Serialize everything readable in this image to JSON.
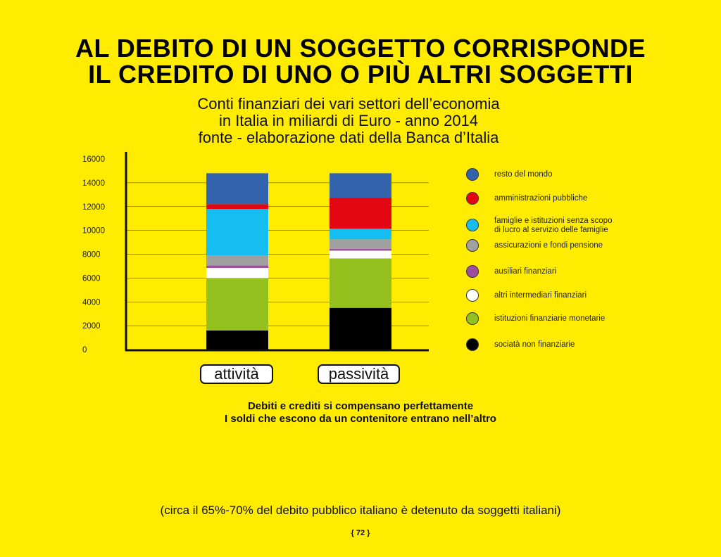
{
  "title_lines": [
    "AL DEBITO DI UN SOGGETTO CORRISPONDE",
    "IL CREDITO DI UNO O PIÙ ALTRI SOGGETTI"
  ],
  "subtitle_lines": [
    "Conti finanziari dei vari settori dell’economia",
    "in Italia in miliardi di Euro - anno 2014",
    "fonte - elaborazione dati della Banca d’Italia"
  ],
  "chart_data": {
    "type": "bar",
    "stacked": true,
    "categories": [
      "attività",
      "passività"
    ],
    "ylim": [
      0,
      16000
    ],
    "yticks": [
      0,
      2000,
      4000,
      6000,
      8000,
      10000,
      12000,
      14000,
      16000
    ],
    "grid": true,
    "legend_position": "right",
    "series": [
      {
        "name": "sociatà non finanziarie",
        "color": "#000000",
        "values": [
          1600,
          3500
        ]
      },
      {
        "name": "istituzioni finanziarie monetarie",
        "color": "#95c11f",
        "values": [
          4400,
          4150
        ]
      },
      {
        "name": "altri intermediari finanziari",
        "color": "#ffffff",
        "values": [
          850,
          650
        ]
      },
      {
        "name": "ausiliari finanziari",
        "color": "#9b4f9e",
        "values": [
          200,
          150
        ]
      },
      {
        "name": "assicurazioni e fondi pensione",
        "color": "#a0a0a0",
        "values": [
          850,
          800
        ]
      },
      {
        "name": "famiglie e istituzioni senza scopo di lucro al servizio delle famiglie",
        "color": "#16bdf0",
        "values": [
          3900,
          900
        ]
      },
      {
        "name": "amministrazioni pubbliche",
        "color": "#e30613",
        "values": [
          400,
          2600
        ]
      },
      {
        "name": "resto del mondo",
        "color": "#3463ad",
        "values": [
          2600,
          2050
        ]
      }
    ]
  },
  "legend": [
    {
      "label_lines": [
        "resto del mondo"
      ],
      "color": "#3463ad"
    },
    {
      "label_lines": [
        "amministrazioni pubbliche"
      ],
      "color": "#e30613"
    },
    {
      "label_lines": [
        "famiglie e istituzioni senza scopo",
        "di lucro al servizio delle famiglie"
      ],
      "color": "#16bdf0"
    },
    {
      "label_lines": [
        "assicurazioni e fondi pensione"
      ],
      "color": "#a0a0a0"
    },
    {
      "label_lines": [
        "ausiliari finanziari"
      ],
      "color": "#9b4f9e"
    },
    {
      "label_lines": [
        "altri intermediari finanziari"
      ],
      "color": "#ffffff"
    },
    {
      "label_lines": [
        "istituzioni finanziarie monetarie"
      ],
      "color": "#95c11f"
    },
    {
      "label_lines": [
        "sociatà non finanziarie"
      ],
      "color": "#000000"
    }
  ],
  "caption_lines": [
    "Debiti e crediti si compensano perfettamente",
    "I soldi che escono da un contenitore entrano nell’altro"
  ],
  "note": "(circa il 65%-70% del debito pubblico italiano è detenuto da soggetti italiani)",
  "page_number": "{ 72 }"
}
